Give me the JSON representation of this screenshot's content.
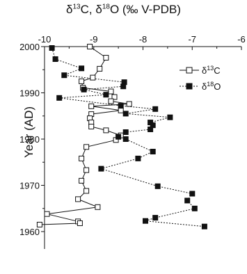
{
  "chart_data": {
    "type": "line",
    "title_parts": [
      "δ",
      "13",
      "C, δ",
      "18",
      "O (‰ V-PDB)"
    ],
    "ylabel": "Year (AD)",
    "xlim": [
      -10,
      -6
    ],
    "x_ticks": [
      "-10",
      "-9",
      "-8",
      "-7",
      "-6"
    ],
    "x_tick_values": [
      -10,
      -9,
      -8,
      -7,
      -6
    ],
    "ylim": [
      1960,
      2000
    ],
    "y_ticks": [
      "2000",
      "1990",
      "1980",
      "1970",
      "1960"
    ],
    "y_tick_values": [
      2000,
      1990,
      1980,
      1970,
      1960
    ],
    "axes": {
      "x_position": "top",
      "y_reversed_time": true,
      "grid": false
    },
    "legend_position": "top-right",
    "series": [
      {
        "name_parts": [
          "δ",
          "13",
          "C"
        ],
        "marker": "open-square",
        "line": "solid",
        "points": [
          {
            "x": -9.08,
            "y": 2000.0
          },
          {
            "x": -8.75,
            "y": 1997.6
          },
          {
            "x": -8.88,
            "y": 1995.2
          },
          {
            "x": -9.02,
            "y": 1993.3
          },
          {
            "x": -9.25,
            "y": 1992.5
          },
          {
            "x": -9.22,
            "y": 1991.1
          },
          {
            "x": -8.65,
            "y": 1990.3
          },
          {
            "x": -8.58,
            "y": 1989.1
          },
          {
            "x": -8.65,
            "y": 1988.2
          },
          {
            "x": -8.28,
            "y": 1987.6
          },
          {
            "x": -9.05,
            "y": 1987.1
          },
          {
            "x": -8.45,
            "y": 1986.2
          },
          {
            "x": -9.05,
            "y": 1985.4
          },
          {
            "x": -9.08,
            "y": 1984.5
          },
          {
            "x": -9.05,
            "y": 1983.6
          },
          {
            "x": -9.05,
            "y": 1982.7
          },
          {
            "x": -8.75,
            "y": 1981.9
          },
          {
            "x": -8.45,
            "y": 1980.8
          },
          {
            "x": -8.55,
            "y": 1979.8
          },
          {
            "x": -9.15,
            "y": 1978.3
          },
          {
            "x": -9.25,
            "y": 1975.8
          },
          {
            "x": -9.15,
            "y": 1973.3
          },
          {
            "x": -9.25,
            "y": 1971.0
          },
          {
            "x": -9.15,
            "y": 1968.8
          },
          {
            "x": -9.32,
            "y": 1967.0
          },
          {
            "x": -8.92,
            "y": 1965.3
          },
          {
            "x": -9.95,
            "y": 1963.8
          },
          {
            "x": -9.32,
            "y": 1962.2
          },
          {
            "x": -9.28,
            "y": 1961.8
          },
          {
            "x": -10.1,
            "y": 1961.5
          }
        ]
      },
      {
        "name_parts": [
          "δ",
          "18",
          "O"
        ],
        "marker": "filled-square",
        "line": "dotted",
        "points": [
          {
            "x": -9.85,
            "y": 1999.7
          },
          {
            "x": -9.78,
            "y": 1997.3
          },
          {
            "x": -9.25,
            "y": 1995.3
          },
          {
            "x": -9.6,
            "y": 1993.8
          },
          {
            "x": -8.38,
            "y": 1992.3
          },
          {
            "x": -8.4,
            "y": 1991.4
          },
          {
            "x": -9.2,
            "y": 1990.7
          },
          {
            "x": -8.75,
            "y": 1989.6
          },
          {
            "x": -9.7,
            "y": 1988.9
          },
          {
            "x": -8.45,
            "y": 1987.2
          },
          {
            "x": -7.75,
            "y": 1986.5
          },
          {
            "x": -8.35,
            "y": 1985.5
          },
          {
            "x": -7.45,
            "y": 1984.7
          },
          {
            "x": -7.85,
            "y": 1983.6
          },
          {
            "x": -7.8,
            "y": 1983.0
          },
          {
            "x": -7.85,
            "y": 1982.1
          },
          {
            "x": -8.35,
            "y": 1981.5
          },
          {
            "x": -8.5,
            "y": 1980.5
          },
          {
            "x": -8.35,
            "y": 1980.0
          },
          {
            "x": -7.8,
            "y": 1977.3
          },
          {
            "x": -8.1,
            "y": 1975.8
          },
          {
            "x": -8.85,
            "y": 1973.6
          },
          {
            "x": -7.7,
            "y": 1969.8
          },
          {
            "x": -7.0,
            "y": 1968.2
          },
          {
            "x": -7.1,
            "y": 1966.7
          },
          {
            "x": -6.95,
            "y": 1965.0
          },
          {
            "x": -7.75,
            "y": 1963.0
          },
          {
            "x": -7.95,
            "y": 1962.3
          },
          {
            "x": -6.75,
            "y": 1961.1
          }
        ]
      }
    ]
  }
}
